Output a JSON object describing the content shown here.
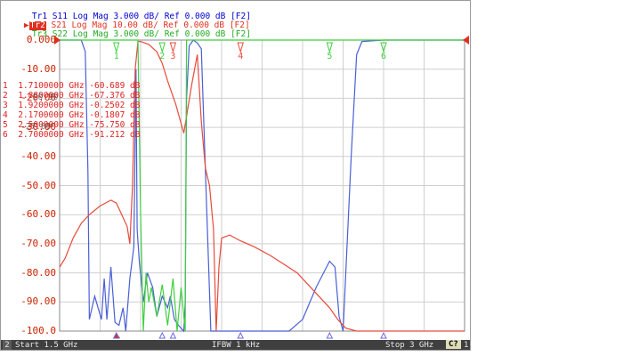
{
  "traces": [
    {
      "id": "Tr1",
      "param": "S11",
      "format": "Log Mag",
      "scale": "3.000 dB/",
      "ref": "Ref 0.000 dB",
      "tag": "[F2]"
    },
    {
      "id": "Tr2",
      "param": "S21",
      "format": "Log Mag",
      "scale": "10.00 dB/",
      "ref": "Ref 0.000 dB",
      "tag": "[F2]"
    },
    {
      "id": "Tr3",
      "param": "S22",
      "format": "Log Mag",
      "scale": "3.000 dB/",
      "ref": "Ref 0.000 dB",
      "tag": "[F2]"
    }
  ],
  "y_ticks": [
    "0.000",
    "-10.00",
    "-20.00",
    "-30.00",
    "-40.00",
    "-50.00",
    "-60.00",
    "-70.00",
    "-80.00",
    "-90.00",
    "-100.0"
  ],
  "markers": [
    {
      "n": "1",
      "freq": "1.7100000 GHz",
      "value": "-60.689 dB"
    },
    {
      "n": "2",
      "freq": "1.8800000 GHz",
      "value": "-67.376 dB"
    },
    {
      "n": "3",
      "freq": "1.9200000 GHz",
      "value": "-0.2502 dB"
    },
    {
      "n": "4",
      "freq": "2.1700000 GHz",
      "value": "-0.1807 dB"
    },
    {
      "n": "5",
      "freq": "2.5000000 GHz",
      "value": "-75.750 dB"
    },
    {
      "n": "6",
      "freq": "2.7000000 GHz",
      "value": "-91.212 dB"
    }
  ],
  "overlap_text": {
    "a": "-20.30",
    "b": "-27.00"
  },
  "status": {
    "channel": "2",
    "start": "Start 1.5 GHz",
    "ifbw": "IFBW 1 kHz",
    "stop": "Stop 3 GHz",
    "c": "C?",
    "num": "1"
  },
  "colors": {
    "s11": "#4a5fd6",
    "s21": "#e84a3a",
    "s22": "#3fcf3f",
    "grid": "#cfcfcf",
    "axis_text": "#cc2200"
  },
  "chart_data": {
    "type": "line",
    "x_range_ghz": [
      1.5,
      3.0
    ],
    "ylim": [
      -100,
      0
    ],
    "grid": true,
    "series": [
      {
        "name": "S11",
        "points": [
          [
            1.5,
            0
          ],
          [
            1.58,
            0
          ],
          [
            1.595,
            -4
          ],
          [
            1.605,
            -45
          ],
          [
            1.61,
            -96
          ],
          [
            1.63,
            -88
          ],
          [
            1.655,
            -96
          ],
          [
            1.665,
            -82
          ],
          [
            1.675,
            -96
          ],
          [
            1.69,
            -78
          ],
          [
            1.705,
            -97
          ],
          [
            1.72,
            -98
          ],
          [
            1.735,
            -92
          ],
          [
            1.745,
            -100
          ],
          [
            1.76,
            -82
          ],
          [
            1.775,
            -71
          ],
          [
            1.783,
            -10
          ],
          [
            1.787,
            -65
          ],
          [
            1.795,
            -76
          ],
          [
            1.81,
            -90
          ],
          [
            1.825,
            -80
          ],
          [
            1.845,
            -85
          ],
          [
            1.86,
            -95
          ],
          [
            1.88,
            -88
          ],
          [
            1.9,
            -92
          ],
          [
            1.91,
            -88
          ],
          [
            1.925,
            -96
          ],
          [
            1.94,
            -98
          ],
          [
            1.96,
            -100
          ],
          [
            1.965,
            -90
          ],
          [
            1.97,
            -20
          ],
          [
            1.98,
            -2
          ],
          [
            1.995,
            0
          ],
          [
            2.01,
            -1
          ],
          [
            2.025,
            -3
          ],
          [
            2.04,
            -45
          ],
          [
            2.06,
            -100
          ],
          [
            2.35,
            -100
          ],
          [
            2.4,
            -96
          ],
          [
            2.45,
            -85
          ],
          [
            2.5,
            -76
          ],
          [
            2.52,
            -78
          ],
          [
            2.535,
            -95
          ],
          [
            2.55,
            -100
          ],
          [
            2.58,
            -40
          ],
          [
            2.6,
            -5
          ],
          [
            2.62,
            -0.5
          ],
          [
            2.7,
            0
          ],
          [
            3.0,
            0
          ]
        ]
      },
      {
        "name": "S21",
        "points": [
          [
            1.5,
            -78
          ],
          [
            1.52,
            -75
          ],
          [
            1.55,
            -68
          ],
          [
            1.58,
            -63
          ],
          [
            1.61,
            -60
          ],
          [
            1.65,
            -57
          ],
          [
            1.69,
            -55
          ],
          [
            1.71,
            -56
          ],
          [
            1.73,
            -60
          ],
          [
            1.75,
            -64
          ],
          [
            1.76,
            -70
          ],
          [
            1.77,
            -50
          ],
          [
            1.78,
            -10
          ],
          [
            1.79,
            -0.5
          ],
          [
            1.8,
            -0.5
          ],
          [
            1.83,
            -1.5
          ],
          [
            1.86,
            -4
          ],
          [
            1.88,
            -8
          ],
          [
            1.9,
            -14
          ],
          [
            1.93,
            -22
          ],
          [
            1.96,
            -32
          ],
          [
            1.99,
            -15
          ],
          [
            2.01,
            -5
          ],
          [
            2.025,
            -28
          ],
          [
            2.04,
            -44
          ],
          [
            2.055,
            -50
          ],
          [
            2.07,
            -65
          ],
          [
            2.08,
            -100
          ],
          [
            2.09,
            -78
          ],
          [
            2.1,
            -68
          ],
          [
            2.13,
            -67
          ],
          [
            2.17,
            -69
          ],
          [
            2.22,
            -71
          ],
          [
            2.28,
            -74
          ],
          [
            2.33,
            -77
          ],
          [
            2.38,
            -80
          ],
          [
            2.42,
            -84
          ],
          [
            2.46,
            -88
          ],
          [
            2.5,
            -92
          ],
          [
            2.53,
            -96
          ],
          [
            2.56,
            -99
          ],
          [
            2.6,
            -100
          ],
          [
            3.0,
            -100
          ]
        ]
      },
      {
        "name": "S22",
        "points": [
          [
            1.5,
            0
          ],
          [
            1.79,
            0
          ],
          [
            1.8,
            -60
          ],
          [
            1.81,
            -100
          ],
          [
            1.82,
            -80
          ],
          [
            1.83,
            -90
          ],
          [
            1.84,
            -85
          ],
          [
            1.86,
            -95
          ],
          [
            1.88,
            -84
          ],
          [
            1.9,
            -98
          ],
          [
            1.92,
            -82
          ],
          [
            1.935,
            -100
          ],
          [
            1.95,
            -85
          ],
          [
            1.965,
            -100
          ],
          [
            1.97,
            0
          ],
          [
            3.0,
            0
          ]
        ]
      }
    ]
  }
}
